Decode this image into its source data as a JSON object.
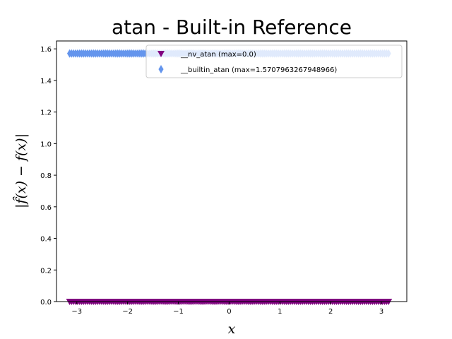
{
  "chart_data": {
    "type": "scatter",
    "title": "atan - Built-in Reference",
    "xlabel": "x",
    "ylabel": "|f̂(x) − f(x)|",
    "xlim": [
      -3.4,
      3.5
    ],
    "ylim": [
      0.0,
      1.65
    ],
    "x_ticks": [
      -3,
      -2,
      -1,
      0,
      1,
      2,
      3
    ],
    "x_tick_labels": [
      "−3",
      "−2",
      "−1",
      "0",
      "1",
      "2",
      "3"
    ],
    "y_ticks": [
      0.0,
      0.2,
      0.4,
      0.6,
      0.8,
      1.0,
      1.2,
      1.4,
      1.6
    ],
    "y_tick_labels": [
      "0.0",
      "0.2",
      "0.4",
      "0.6",
      "0.8",
      "1.0",
      "1.2",
      "1.4",
      "1.6"
    ],
    "grid": false,
    "legend_position": "top-right",
    "x_range": [
      -3.14159,
      3.14159
    ],
    "series": [
      {
        "name": "__nv_atan (max=0.0)",
        "marker": "triangle-down",
        "color": "#800080",
        "constant_y": 0.0
      },
      {
        "name": "__builtin_atan (max=1.5707963267948966)",
        "marker": "thin-diamond",
        "color": "#6495ED",
        "constant_y": 1.5707963267948966
      }
    ]
  }
}
